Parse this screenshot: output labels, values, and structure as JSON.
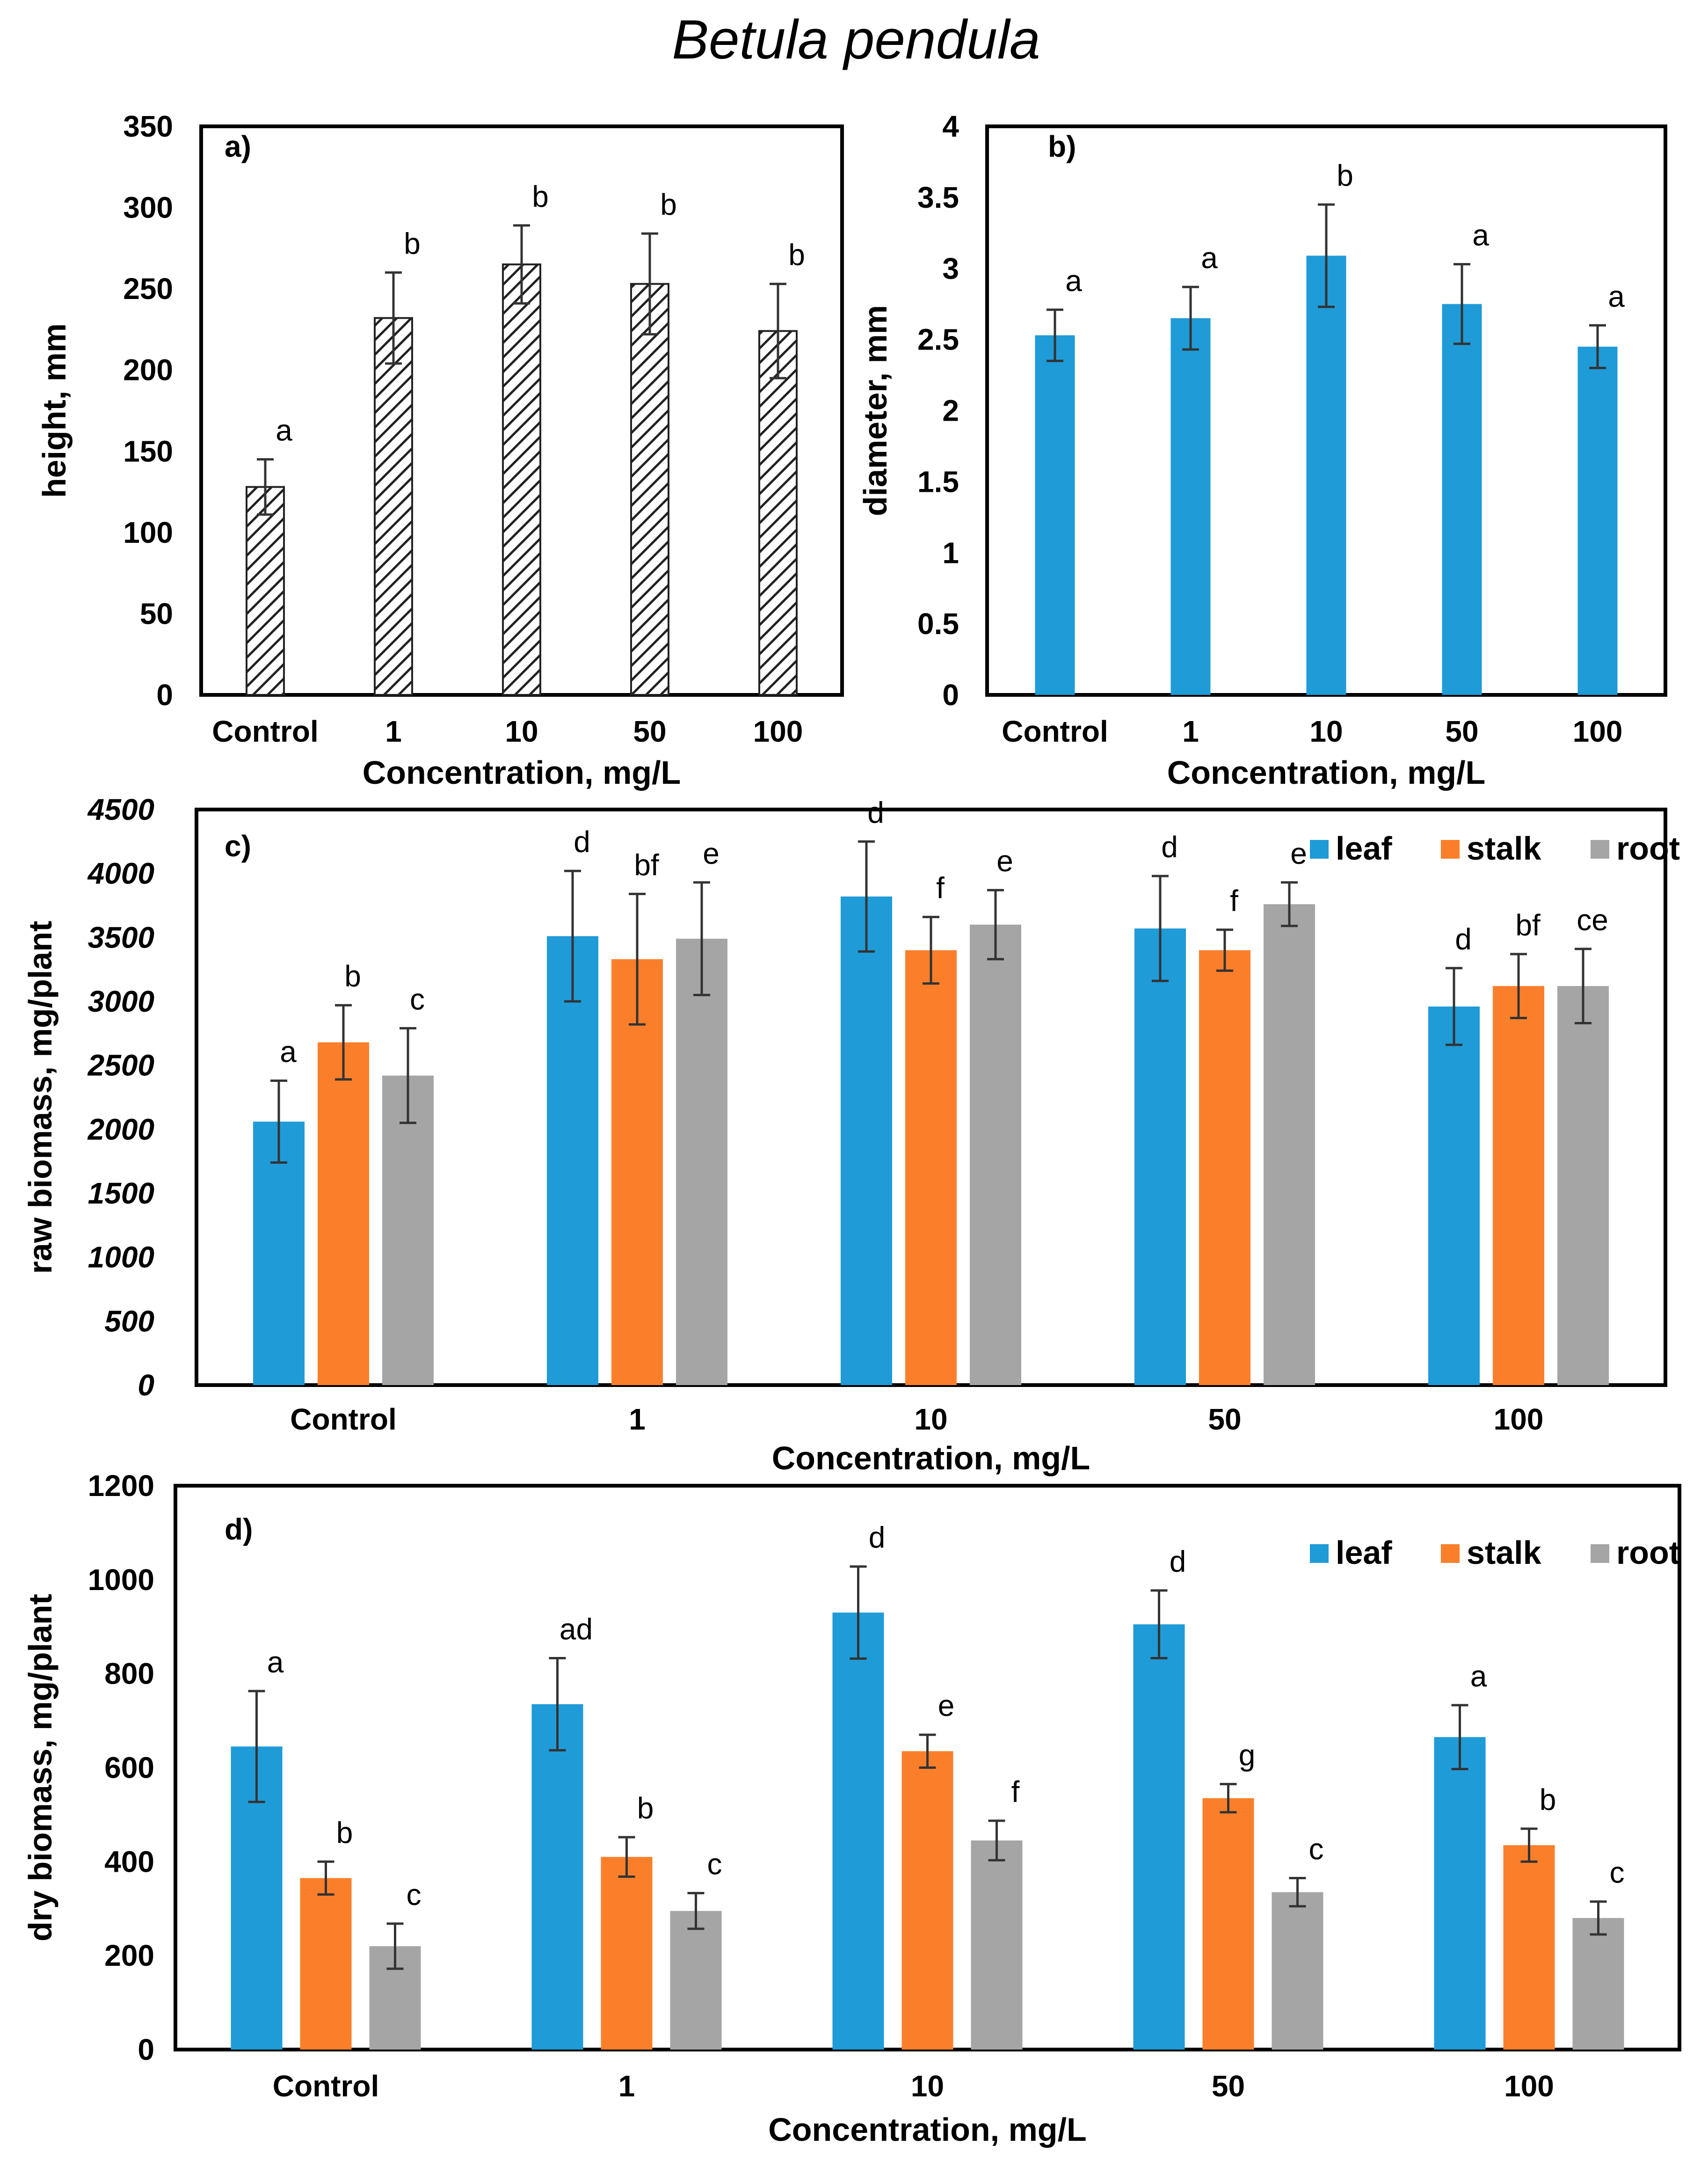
{
  "figure_title": "Betula pendula",
  "colors": {
    "leaf": "#1f9bd7",
    "stalk": "#fb7f2b",
    "root": "#a5a5a5",
    "hatch_stroke": "#222222",
    "axis": "#000000"
  },
  "chart_data": [
    {
      "id": "a",
      "type": "bar",
      "panel_label": "a)",
      "title": "",
      "xlabel": "Concentration, mg/L",
      "ylabel": "height, mm",
      "categories": [
        "Control",
        "1",
        "10",
        "50",
        "100"
      ],
      "ylim": [
        0,
        350
      ],
      "yticks": [
        0,
        50,
        100,
        150,
        200,
        250,
        300,
        350
      ],
      "ytick_labels": [
        "0",
        "50",
        "100",
        "150",
        "200",
        "250",
        "300",
        "350"
      ],
      "grid": false,
      "bar_style": "hatched",
      "series": [
        {
          "name": "height",
          "values": [
            128,
            232,
            265,
            253,
            224
          ],
          "errors": [
            17,
            28,
            24,
            31,
            29
          ],
          "letters": [
            "a",
            "b",
            "b",
            "b",
            "b"
          ]
        }
      ]
    },
    {
      "id": "b",
      "type": "bar",
      "panel_label": "b)",
      "title": "",
      "xlabel": "Concentration, mg/L",
      "ylabel": "diameter, mm",
      "categories": [
        "Control",
        "1",
        "10",
        "50",
        "100"
      ],
      "ylim": [
        0,
        4
      ],
      "yticks": [
        0,
        0.5,
        1,
        1.5,
        2,
        2.5,
        3,
        3.5,
        4
      ],
      "ytick_labels": [
        "0",
        "0.5",
        "1",
        "1.5",
        "2",
        "2.5",
        "3",
        "3.5",
        "4"
      ],
      "grid": false,
      "bar_style": "solid",
      "series": [
        {
          "name": "diameter",
          "values": [
            2.53,
            2.65,
            3.09,
            2.75,
            2.45
          ],
          "errors": [
            0.18,
            0.22,
            0.36,
            0.28,
            0.15
          ],
          "letters": [
            "a",
            "a",
            "b",
            "a",
            "a"
          ]
        }
      ]
    },
    {
      "id": "c",
      "type": "bar",
      "panel_label": "c)",
      "title": "",
      "xlabel": "Concentration, mg/L",
      "ylabel": "raw biomass, mg/plant",
      "categories": [
        "Control",
        "1",
        "10",
        "50",
        "100"
      ],
      "ylim": [
        0,
        4500
      ],
      "yticks": [
        0,
        500,
        1000,
        1500,
        2000,
        2500,
        3000,
        3500,
        4000,
        4500
      ],
      "ytick_labels": [
        "0",
        "500",
        "1000",
        "1500",
        "2000",
        "2500",
        "3000",
        "3500",
        "4000",
        "4500"
      ],
      "ytick_italic": true,
      "grid": false,
      "legend": "top-right",
      "series": [
        {
          "name": "leaf",
          "values": [
            2060,
            3510,
            3820,
            3570,
            2960
          ],
          "errors": [
            320,
            510,
            430,
            410,
            300
          ],
          "letters": [
            "a",
            "d",
            "d",
            "d",
            "d"
          ]
        },
        {
          "name": "stalk",
          "values": [
            2680,
            3330,
            3400,
            3400,
            3120
          ],
          "errors": [
            290,
            510,
            260,
            160,
            250
          ],
          "letters": [
            "b",
            "bf",
            "f",
            "f",
            "bf"
          ]
        },
        {
          "name": "root",
          "values": [
            2420,
            3490,
            3600,
            3760,
            3120
          ],
          "errors": [
            370,
            440,
            270,
            170,
            290
          ],
          "letters": [
            "c",
            "e",
            "e",
            "e",
            "ce"
          ]
        }
      ]
    },
    {
      "id": "d",
      "type": "bar",
      "panel_label": "d)",
      "title": "",
      "xlabel": "Concentration, mg/L",
      "ylabel": "dry biomass, mg/plant",
      "categories": [
        "Control",
        "1",
        "10",
        "50",
        "100"
      ],
      "ylim": [
        0,
        1200
      ],
      "yticks": [
        0,
        200,
        400,
        600,
        800,
        1000,
        1200
      ],
      "ytick_labels": [
        "0",
        "200",
        "400",
        "600",
        "800",
        "1000",
        "1200"
      ],
      "grid": false,
      "legend": "top-right",
      "series": [
        {
          "name": "leaf",
          "values": [
            645,
            735,
            930,
            905,
            665
          ],
          "errors": [
            118,
            98,
            98,
            72,
            68
          ],
          "letters": [
            "a",
            "ad",
            "d",
            "d",
            "a"
          ]
        },
        {
          "name": "stalk",
          "values": [
            365,
            410,
            635,
            535,
            435
          ],
          "errors": [
            35,
            42,
            35,
            30,
            35
          ],
          "letters": [
            "b",
            "b",
            "e",
            "g",
            "b"
          ]
        },
        {
          "name": "root",
          "values": [
            220,
            295,
            445,
            335,
            280
          ],
          "errors": [
            48,
            38,
            42,
            30,
            35
          ],
          "letters": [
            "c",
            "c",
            "f",
            "c",
            "c"
          ]
        }
      ]
    }
  ]
}
